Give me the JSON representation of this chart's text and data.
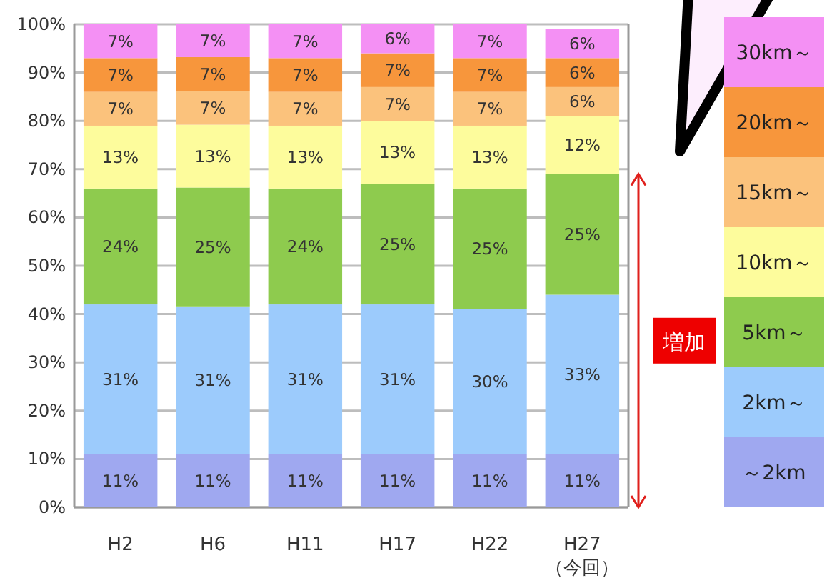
{
  "chart_data": {
    "type": "bar",
    "stacked": true,
    "categories": [
      "H2",
      "H6",
      "H11",
      "H17",
      "H22",
      "H27\n（今回）"
    ],
    "series": [
      {
        "name": "～2km",
        "color": "#9fa8f0",
        "values": [
          11,
          11,
          11,
          11,
          11,
          11
        ],
        "value_labels": [
          "11%",
          "11%",
          "11%",
          "11%",
          "11%",
          "11%"
        ]
      },
      {
        "name": "2km～",
        "color": "#9ccbfc",
        "values": [
          31,
          30.6,
          31,
          31,
          30,
          33
        ],
        "value_labels": [
          "31%",
          "31%",
          "31%",
          "31%",
          "30%",
          "33%"
        ]
      },
      {
        "name": "5km～",
        "color": "#8ecb4e",
        "values": [
          24,
          24.6,
          24,
          25,
          25,
          25
        ],
        "value_labels": [
          "24%",
          "25%",
          "24%",
          "25%",
          "25%",
          "25%"
        ]
      },
      {
        "name": "10km～",
        "color": "#fdfc9c",
        "values": [
          13,
          13,
          13,
          13,
          13,
          12
        ],
        "value_labels": [
          "13%",
          "13%",
          "13%",
          "13%",
          "13%",
          "12%"
        ]
      },
      {
        "name": "15km～",
        "color": "#fbc27c",
        "values": [
          7,
          7,
          7,
          7,
          7,
          6
        ],
        "value_labels": [
          "7%",
          "7%",
          "7%",
          "7%",
          "7%",
          "6%"
        ]
      },
      {
        "name": "20km～",
        "color": "#f7963c",
        "values": [
          7,
          7,
          7,
          7,
          7,
          6
        ],
        "value_labels": [
          "7%",
          "7%",
          "7%",
          "7%",
          "7%",
          "6%"
        ]
      },
      {
        "name": "30km～",
        "color": "#f490f4",
        "values": [
          7,
          6.8,
          7,
          6,
          7,
          6
        ],
        "value_labels": [
          "7%",
          "7%",
          "7%",
          "6%",
          "7%",
          "6%"
        ]
      }
    ],
    "ylim": [
      0,
      100
    ],
    "yticks": [
      {
        "value": 0,
        "label": "0%"
      },
      {
        "value": 10,
        "label": "10%"
      },
      {
        "value": 20,
        "label": "20%"
      },
      {
        "value": 30,
        "label": "30%"
      },
      {
        "value": 40,
        "label": "40%"
      },
      {
        "value": 50,
        "label": "50%"
      },
      {
        "value": 60,
        "label": "60%"
      },
      {
        "value": 70,
        "label": "70%"
      },
      {
        "value": 80,
        "label": "80%"
      },
      {
        "value": 90,
        "label": "90%"
      },
      {
        "value": 100,
        "label": "100%"
      }
    ],
    "grid": "y",
    "legend": "right",
    "annotations": [
      "増加"
    ]
  }
}
